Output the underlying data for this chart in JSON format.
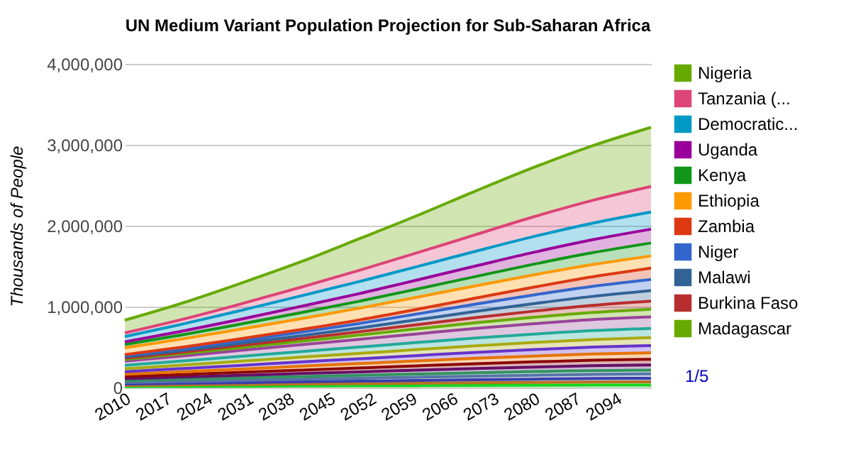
{
  "chart_data": {
    "type": "area",
    "stacked": true,
    "title": "UN Medium Variant Population Projection for Sub-Saharan Africa",
    "ylabel": "Thousands of People",
    "x": [
      2010,
      2020,
      2030,
      2040,
      2050,
      2060,
      2070,
      2080,
      2090,
      2100
    ],
    "xlim": [
      2010,
      2100
    ],
    "xticks": [
      2010,
      2017,
      2024,
      2031,
      2038,
      2045,
      2052,
      2059,
      2066,
      2073,
      2080,
      2087,
      2094
    ],
    "ylim": [
      0,
      4000000
    ],
    "yticks": [
      0,
      {
        "value": 1000000,
        "label": "1,000,000"
      },
      {
        "value": 2000000,
        "label": "2,000,000"
      },
      {
        "value": 3000000,
        "label": "3,000,000"
      },
      {
        "value": 4000000,
        "label": "4,000,000"
      }
    ],
    "grid": "y",
    "legend": "right",
    "annotations": [
      "1/5"
    ],
    "series": [
      {
        "color": "#16d620",
        "values": [
          11000,
          14000,
          16000,
          19000,
          21000,
          23000,
          26000,
          28000,
          30000,
          31000
        ]
      },
      {
        "color": "#b77322",
        "values": [
          15000,
          18000,
          21000,
          24000,
          27000,
          30000,
          33000,
          36000,
          38000,
          40000
        ]
      },
      {
        "color": "#3b3eac",
        "values": [
          16000,
          20000,
          23000,
          27000,
          30000,
          34000,
          37000,
          40000,
          43000,
          44000
        ]
      },
      {
        "color": "#5574a6",
        "values": [
          19000,
          23000,
          28000,
          32000,
          36000,
          40000,
          44000,
          48000,
          51000,
          53000
        ]
      },
      {
        "color": "#329262",
        "values": [
          25000,
          28000,
          31000,
          34000,
          37000,
          40000,
          43000,
          45000,
          47000,
          48000
        ]
      },
      {
        "color": "#651067",
        "values": [
          23000,
          27000,
          32000,
          37000,
          42000,
          47000,
          52000,
          56000,
          60000,
          62000
        ]
      },
      {
        "color": "#8b0707",
        "values": [
          26000,
          31000,
          37000,
          42000,
          48000,
          54000,
          59000,
          64000,
          68000,
          71000
        ]
      },
      {
        "color": "#e67300",
        "values": [
          29000,
          35000,
          41000,
          48000,
          54000,
          60000,
          67000,
          72000,
          77000,
          80000
        ]
      },
      {
        "color": "#6633cc",
        "values": [
          32000,
          39000,
          46000,
          53000,
          60000,
          67000,
          74000,
          80000,
          85000,
          89000
        ]
      },
      {
        "color": "#aaaa11",
        "values": [
          36000,
          43000,
          51000,
          58000,
          66000,
          74000,
          81000,
          88000,
          94000,
          98000
        ]
      },
      {
        "color": "#22aa99",
        "values": [
          42000,
          51000,
          60000,
          69000,
          78000,
          87000,
          96000,
          104000,
          111000,
          115000
        ]
      },
      {
        "color": "#994499",
        "values": [
          52000,
          62000,
          74000,
          85000,
          96000,
          107000,
          118000,
          128000,
          136000,
          142000
        ]
      },
      {
        "name": "Madagascar",
        "color": "#66aa00",
        "values": [
          21000,
          27000,
          34000,
          41000,
          53000,
          62000,
          70000,
          79000,
          87000,
          95000
        ]
      },
      {
        "name": "Burkina Faso",
        "color": "#b82e2e",
        "values": [
          16000,
          21000,
          27000,
          34000,
          41000,
          52000,
          64000,
          76000,
          88000,
          100000
        ]
      },
      {
        "name": "Malawi",
        "color": "#316395",
        "values": [
          15000,
          20000,
          27000,
          36000,
          46000,
          60000,
          76000,
          93000,
          111000,
          129000
        ]
      },
      {
        "name": "Niger",
        "color": "#3366cc",
        "values": [
          16000,
          23000,
          32000,
          42000,
          55000,
          72000,
          90000,
          108000,
          124000,
          139000
        ]
      },
      {
        "name": "Zambia",
        "color": "#dc3912",
        "values": [
          13000,
          18000,
          25000,
          34000,
          44000,
          58000,
          75000,
          96000,
          118000,
          140000
        ]
      },
      {
        "name": "Ethiopia",
        "color": "#ff9900",
        "values": [
          83000,
          102000,
          118000,
          133000,
          145000,
          150000,
          152000,
          152000,
          151000,
          150000
        ]
      },
      {
        "name": "Kenya",
        "color": "#109618",
        "values": [
          41000,
          52000,
          64000,
          76000,
          86000,
          100000,
          115000,
          132000,
          147000,
          160000
        ]
      },
      {
        "name": "Uganda",
        "color": "#990099",
        "values": [
          33000,
          45000,
          60000,
          77000,
          94000,
          112000,
          130000,
          147000,
          160000,
          171000
        ]
      },
      {
        "name": "Democratic...",
        "color": "#0099c6",
        "values": [
          66000,
          87000,
          108000,
          129000,
          149000,
          166000,
          182000,
          195000,
          205000,
          212000
        ]
      },
      {
        "name": "Tanzania (...",
        "color": "#dd4477",
        "values": [
          45000,
          59000,
          81000,
          107000,
          138000,
          170000,
          205000,
          245000,
          282000,
          316000
        ]
      },
      {
        "name": "Nigeria",
        "color": "#66aa00",
        "values": [
          158000,
          203000,
          257000,
          314000,
          390000,
          460000,
          540000,
          610000,
          675000,
          730000
        ]
      }
    ]
  }
}
